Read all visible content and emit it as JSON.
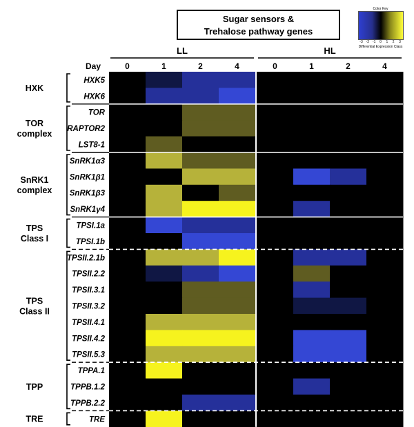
{
  "title_lines": [
    "Sugar sensors &",
    "Trehalose pathway genes"
  ],
  "color_key": {
    "title": "Color Key",
    "label": "Differential Expression Class",
    "ticks": [
      "-3",
      "-2",
      "-1",
      "0",
      "1",
      "2",
      "3"
    ],
    "colors": {
      "-3": "#3447d4",
      "-2": "#25309a",
      "-1": "#101744",
      "0": "#000000",
      "1": "#5f5c21",
      "2": "#b6b23a",
      "3": "#f6f31e"
    }
  },
  "chart_data": {
    "type": "heatmap",
    "conditions": [
      "LL",
      "HL"
    ],
    "day_label": "Day",
    "days": [
      "0",
      "1",
      "2",
      "4"
    ],
    "groups": [
      {
        "name": [
          "HXK"
        ],
        "genes": [
          "HXK5",
          "HXK6"
        ]
      },
      {
        "name": [
          "TOR",
          "complex"
        ],
        "genes": [
          "TOR",
          "RAPTOR2",
          "LST8-1"
        ]
      },
      {
        "name": [
          "SnRK1",
          "complex"
        ],
        "genes": [
          "SnRK1α3",
          "SnRK1β1",
          "SnRK1β3",
          "SnRK1γ4"
        ]
      },
      {
        "name": [
          "TPS",
          "Class I"
        ],
        "genes": [
          "TPSI.1a",
          "TPSI.1b"
        ]
      },
      {
        "name": [
          "TPS",
          "Class II"
        ],
        "genes": [
          "TPSII.2.1b",
          "TPSII.2.2",
          "TPSII.3.1",
          "TPSII.3.2",
          "TPSII.4.1",
          "TPSII.4.2",
          "TPSII.5.3"
        ]
      },
      {
        "name": [
          "TPP"
        ],
        "genes": [
          "TPPA.1",
          "TPPB.1.2",
          "TPPB.2.2"
        ]
      },
      {
        "name": [
          "TRE"
        ],
        "genes": [
          "TRE"
        ]
      }
    ],
    "values": {
      "HXK5": {
        "LL": [
          0,
          -1,
          -2,
          -2
        ],
        "HL": [
          0,
          0,
          0,
          0
        ]
      },
      "HXK6": {
        "LL": [
          0,
          -2,
          -2,
          -3
        ],
        "HL": [
          0,
          0,
          0,
          0
        ]
      },
      "TOR": {
        "LL": [
          0,
          0,
          1,
          1
        ],
        "HL": [
          0,
          0,
          0,
          0
        ]
      },
      "RAPTOR2": {
        "LL": [
          0,
          0,
          1,
          1
        ],
        "HL": [
          0,
          0,
          0,
          0
        ]
      },
      "LST8-1": {
        "LL": [
          0,
          1,
          0,
          0
        ],
        "HL": [
          0,
          0,
          0,
          0
        ]
      },
      "SnRK1α3": {
        "LL": [
          0,
          2,
          1,
          1
        ],
        "HL": [
          0,
          0,
          0,
          0
        ]
      },
      "SnRK1β1": {
        "LL": [
          0,
          0,
          2,
          2
        ],
        "HL": [
          0,
          -3,
          -2,
          0
        ]
      },
      "SnRK1β3": {
        "LL": [
          0,
          2,
          0,
          1
        ],
        "HL": [
          0,
          0,
          0,
          0
        ]
      },
      "SnRK1γ4": {
        "LL": [
          0,
          2,
          3,
          3
        ],
        "HL": [
          0,
          -2,
          0,
          0
        ]
      },
      "TPSI.1a": {
        "LL": [
          0,
          -3,
          -2,
          -2
        ],
        "HL": [
          0,
          0,
          0,
          0
        ]
      },
      "TPSI.1b": {
        "LL": [
          0,
          0,
          -3,
          -3
        ],
        "HL": [
          0,
          0,
          0,
          0
        ]
      },
      "TPSII.2.1b": {
        "LL": [
          0,
          2,
          2,
          3
        ],
        "HL": [
          0,
          -2,
          -2,
          0
        ]
      },
      "TPSII.2.2": {
        "LL": [
          0,
          -1,
          -2,
          -3
        ],
        "HL": [
          0,
          1,
          0,
          0
        ]
      },
      "TPSII.3.1": {
        "LL": [
          0,
          0,
          1,
          1
        ],
        "HL": [
          0,
          -2,
          0,
          0
        ]
      },
      "TPSII.3.2": {
        "LL": [
          0,
          0,
          1,
          1
        ],
        "HL": [
          0,
          -1,
          -1,
          0
        ]
      },
      "TPSII.4.1": {
        "LL": [
          0,
          2,
          2,
          2
        ],
        "HL": [
          0,
          0,
          0,
          0
        ]
      },
      "TPSII.4.2": {
        "LL": [
          0,
          3,
          3,
          3
        ],
        "HL": [
          0,
          -3,
          -3,
          0
        ]
      },
      "TPSII.5.3": {
        "LL": [
          0,
          2,
          2,
          2
        ],
        "HL": [
          0,
          -3,
          -3,
          0
        ]
      },
      "TPPA.1": {
        "LL": [
          0,
          3,
          0,
          0
        ],
        "HL": [
          0,
          0,
          0,
          0
        ]
      },
      "TPPB.1.2": {
        "LL": [
          0,
          0,
          0,
          0
        ],
        "HL": [
          0,
          -2,
          0,
          0
        ]
      },
      "TPPB.2.2": {
        "LL": [
          0,
          0,
          -2,
          -2
        ],
        "HL": [
          0,
          0,
          0,
          0
        ]
      },
      "TRE": {
        "LL": [
          0,
          3,
          0,
          0
        ],
        "HL": [
          0,
          0,
          0,
          0
        ]
      }
    },
    "dashed_separators_before": [
      "TPSII.2.1b",
      "TPPA.1",
      "TRE"
    ]
  }
}
